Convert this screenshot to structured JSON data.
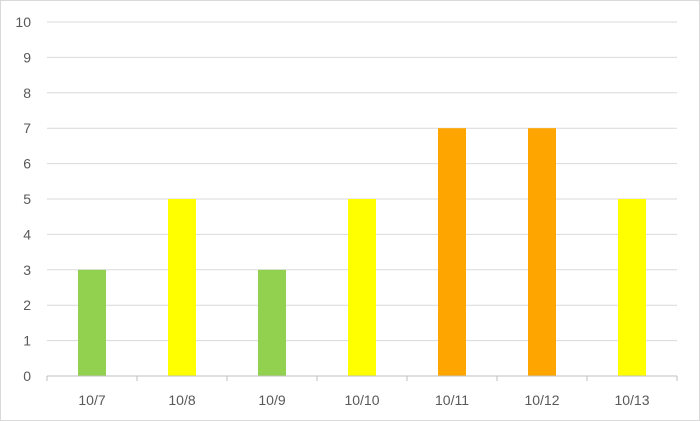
{
  "chart_data": {
    "type": "bar",
    "title": "",
    "xlabel": "",
    "ylabel": "",
    "categories": [
      "10/7",
      "10/8",
      "10/9",
      "10/10",
      "10/11",
      "10/12",
      "10/13"
    ],
    "values": [
      3,
      5,
      3,
      5,
      7,
      7,
      5
    ],
    "bar_colors": [
      "#92D050",
      "#FFFF00",
      "#92D050",
      "#FFFF00",
      "#FFA500",
      "#FFA500",
      "#FFFF00"
    ],
    "ylim": [
      0,
      10
    ],
    "yticks": [
      0,
      1,
      2,
      3,
      4,
      5,
      6,
      7,
      8,
      9,
      10
    ],
    "grid": true,
    "gridline_color": "#d9d9d9",
    "legend": "none"
  }
}
